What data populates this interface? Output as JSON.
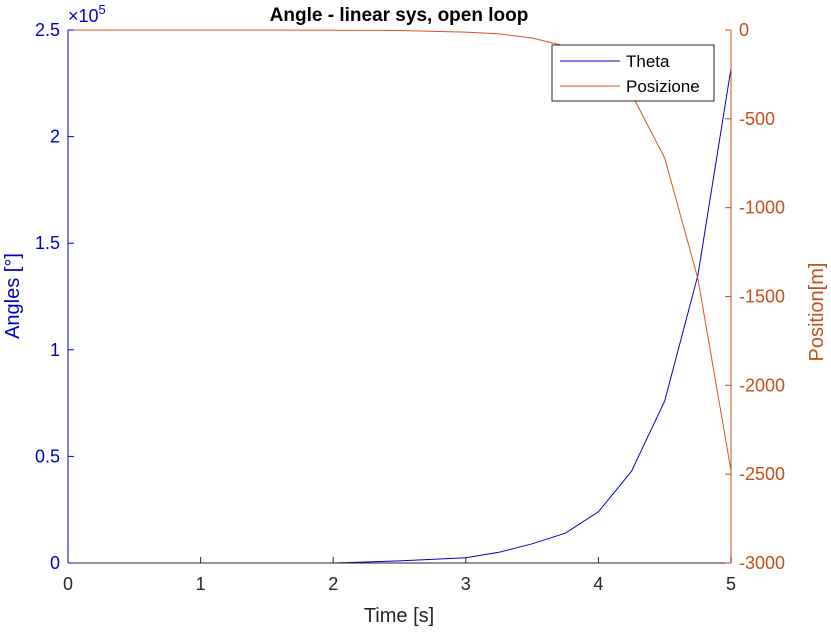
{
  "chart_data": {
    "type": "line",
    "title": "Angle - linear sys, open loop",
    "xlabel": "Time [s]",
    "ylabel_left": "Angles [°]",
    "ylabel_right": "Position[m]",
    "xlim": [
      0,
      5
    ],
    "ylim_left": [
      0,
      250000
    ],
    "ylim_right": [
      -3000,
      0
    ],
    "x_ticks": [
      "0",
      "1",
      "2",
      "3",
      "4",
      "5"
    ],
    "y_left_ticks": [
      "0",
      "0.5",
      "1",
      "1.5",
      "2",
      "2.5"
    ],
    "y_left_exponent": "×10",
    "y_left_exponent_power": "5",
    "y_right_ticks": [
      "0",
      "-500",
      "-1000",
      "-1500",
      "-2000",
      "-2500",
      "-3000"
    ],
    "grid": false,
    "legend_position": "top-right",
    "colors": {
      "left_axis": "#0000cc",
      "right_axis": "#c0501d",
      "theta": "#0000cc",
      "position": "#d95319"
    },
    "series": [
      {
        "name": "Theta",
        "axis": "left",
        "x": [
          0,
          1,
          1.5,
          2,
          2.5,
          3,
          3.25,
          3.5,
          3.75,
          4,
          4.25,
          4.5,
          4.75,
          5
        ],
        "y": [
          0,
          0,
          0,
          0,
          1000,
          2500,
          5000,
          9000,
          14000,
          24000,
          43000,
          76000,
          135000,
          232000
        ]
      },
      {
        "name": "Posizione",
        "axis": "right",
        "x": [
          0,
          1,
          1.5,
          2,
          2.5,
          3,
          3.25,
          3.5,
          3.75,
          4,
          4.25,
          4.5,
          4.75,
          5
        ],
        "y": [
          0,
          0,
          0,
          -1,
          -3,
          -12,
          -22,
          -45,
          -90,
          -180,
          -360,
          -720,
          -1400,
          -2480
        ]
      }
    ]
  }
}
